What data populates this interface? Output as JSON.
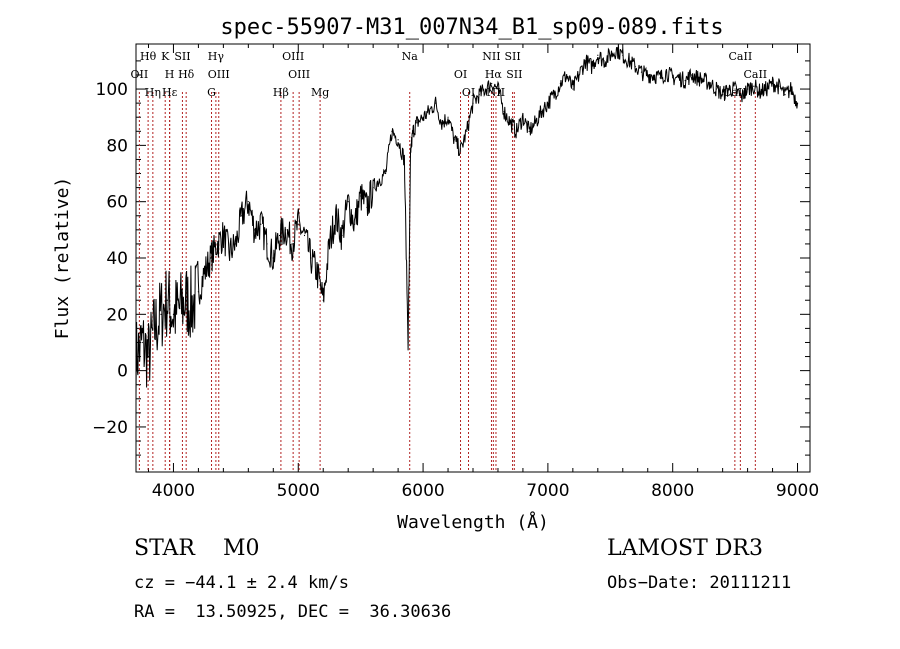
{
  "chart_data": {
    "type": "line",
    "title": "spec-55907-M31_007N34_B1_sp09-089.fits",
    "xlabel": "Wavelength (Å)",
    "ylabel": "Flux (relative)",
    "xlim": [
      3700,
      9100
    ],
    "ylim": [
      -36,
      116
    ],
    "xticks": [
      4000,
      5000,
      6000,
      7000,
      8000,
      9000
    ],
    "yticks": [
      -20,
      0,
      20,
      40,
      60,
      80,
      100
    ],
    "series": [
      {
        "name": "flux",
        "x": [
          3700,
          3750,
          3800,
          3850,
          3900,
          3950,
          4000,
          4050,
          4100,
          4150,
          4200,
          4250,
          4300,
          4350,
          4400,
          4450,
          4500,
          4550,
          4600,
          4650,
          4700,
          4750,
          4800,
          4850,
          4900,
          4950,
          5000,
          5050,
          5100,
          5150,
          5200,
          5250,
          5300,
          5350,
          5400,
          5450,
          5500,
          5550,
          5600,
          5650,
          5700,
          5750,
          5800,
          5850,
          5880,
          5890,
          5900,
          5920,
          5950,
          6000,
          6050,
          6100,
          6150,
          6200,
          6250,
          6300,
          6350,
          6400,
          6450,
          6500,
          6550,
          6600,
          6650,
          6700,
          6750,
          6800,
          6850,
          6900,
          6950,
          7000,
          7050,
          7100,
          7150,
          7200,
          7250,
          7300,
          7350,
          7400,
          7450,
          7500,
          7550,
          7600,
          7650,
          7700,
          7750,
          7800,
          7850,
          7900,
          7950,
          8000,
          8050,
          8100,
          8150,
          8200,
          8250,
          8300,
          8350,
          8400,
          8450,
          8500,
          8550,
          8600,
          8650,
          8700,
          8750,
          8800,
          8850,
          8900,
          8950,
          9000
        ],
        "y": [
          5,
          10,
          5,
          15,
          20,
          25,
          20,
          22,
          25,
          23,
          28,
          35,
          40,
          45,
          48,
          42,
          45,
          55,
          60,
          50,
          52,
          45,
          40,
          48,
          50,
          45,
          52,
          48,
          40,
          35,
          25,
          45,
          55,
          48,
          60,
          52,
          62,
          58,
          65,
          68,
          70,
          85,
          82,
          75,
          10,
          40,
          78,
          85,
          88,
          90,
          92,
          95,
          88,
          90,
          82,
          78,
          85,
          95,
          98,
          100,
          102,
          100,
          92,
          88,
          85,
          90,
          85,
          88,
          92,
          95,
          98,
          102,
          105,
          100,
          105,
          110,
          108,
          112,
          110,
          112,
          114,
          112,
          110,
          108,
          106,
          105,
          105,
          104,
          106,
          104,
          104,
          103,
          105,
          104,
          103,
          102,
          100,
          98,
          100,
          100,
          97,
          100,
          101,
          99,
          100,
          102,
          101,
          98,
          100,
          95
        ]
      }
    ],
    "lines": [
      {
        "label": "Hθ",
        "x": 3797
      },
      {
        "label": "OII",
        "x": 3727
      },
      {
        "label": "Hη",
        "x": 3835
      },
      {
        "label": "K",
        "x": 3934
      },
      {
        "label": "H",
        "x": 3969
      },
      {
        "label": "Hε",
        "x": 3970
      },
      {
        "label": "SII",
        "x": 4072
      },
      {
        "label": "Hδ",
        "x": 4102
      },
      {
        "label": "G",
        "x": 4305
      },
      {
        "label": "Hγ",
        "x": 4340
      },
      {
        "label": "OIII",
        "x": 4363
      },
      {
        "label": "Hβ",
        "x": 4861
      },
      {
        "label": "OIII",
        "x": 4959
      },
      {
        "label": "OIII",
        "x": 5007
      },
      {
        "label": "Mg",
        "x": 5175
      },
      {
        "label": "Na",
        "x": 5893
      },
      {
        "label": "OI",
        "x": 6300
      },
      {
        "label": "OI",
        "x": 6364
      },
      {
        "label": "NII",
        "x": 6548
      },
      {
        "label": "Hα",
        "x": 6563
      },
      {
        "label": "NII",
        "x": 6584
      },
      {
        "label": "SII",
        "x": 6717
      },
      {
        "label": "SII",
        "x": 6731
      },
      {
        "label": "CaII",
        "x": 8498
      },
      {
        "label": "CaII",
        "x": 8542
      },
      {
        "label": "CaII",
        "x": 8662
      }
    ]
  },
  "info": {
    "type_line": "STAR    M0",
    "cz_line": "cz = −44.1 ± 2.4 km/s",
    "radec_line": "RA =  13.50925, DEC =  36.30636",
    "survey": "LAMOST DR3",
    "obs_date": "Obs−Date: 20111211"
  }
}
